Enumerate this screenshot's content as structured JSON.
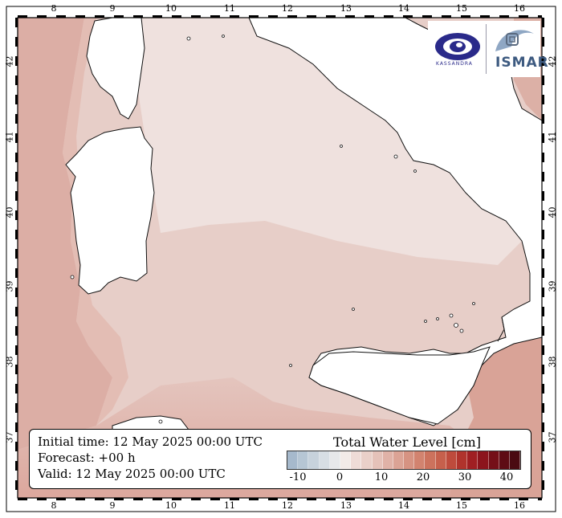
{
  "map": {
    "lon_ticks": [
      "8",
      "9",
      "10",
      "11",
      "12",
      "13",
      "14",
      "15",
      "16"
    ],
    "lat_ticks": [
      "42",
      "41",
      "40",
      "39",
      "38",
      "37"
    ],
    "colors": {
      "sea_light": "#efe1de",
      "sea_mid": "#e6c9c3",
      "sea_warm": "#dcada3",
      "sea_dark": "#d59a8f",
      "land": "#ffffff",
      "coast": "#111111"
    }
  },
  "info": {
    "initial_time": "Initial time: 12 May 2025 00:00 UTC",
    "forecast": "Forecast: +00 h",
    "valid": "Valid: 12 May 2025 00:00 UTC"
  },
  "colorbar": {
    "title": "Total Water Level [cm]",
    "ticks": [
      "-10",
      "0",
      "10",
      "20",
      "30",
      "40"
    ],
    "colors": [
      "#a6b9cc",
      "#b6c6d4",
      "#c7d2dc",
      "#d7dee4",
      "#e7e8ea",
      "#f2ebe8",
      "#efdcd7",
      "#ead0c9",
      "#e5c2b9",
      "#e0b2a7",
      "#dba395",
      "#d69382",
      "#d2836f",
      "#cc725d",
      "#c6604c",
      "#be4b3c",
      "#b0332c",
      "#a01f22",
      "#8c141c",
      "#751018",
      "#5e0c14",
      "#4a0a12"
    ]
  },
  "logos": {
    "left_icon": "kassandra-eye-icon",
    "left_name": "KASSANDRA",
    "right_icon": "ismar-wave-icon",
    "right_name": "ISMAR"
  }
}
